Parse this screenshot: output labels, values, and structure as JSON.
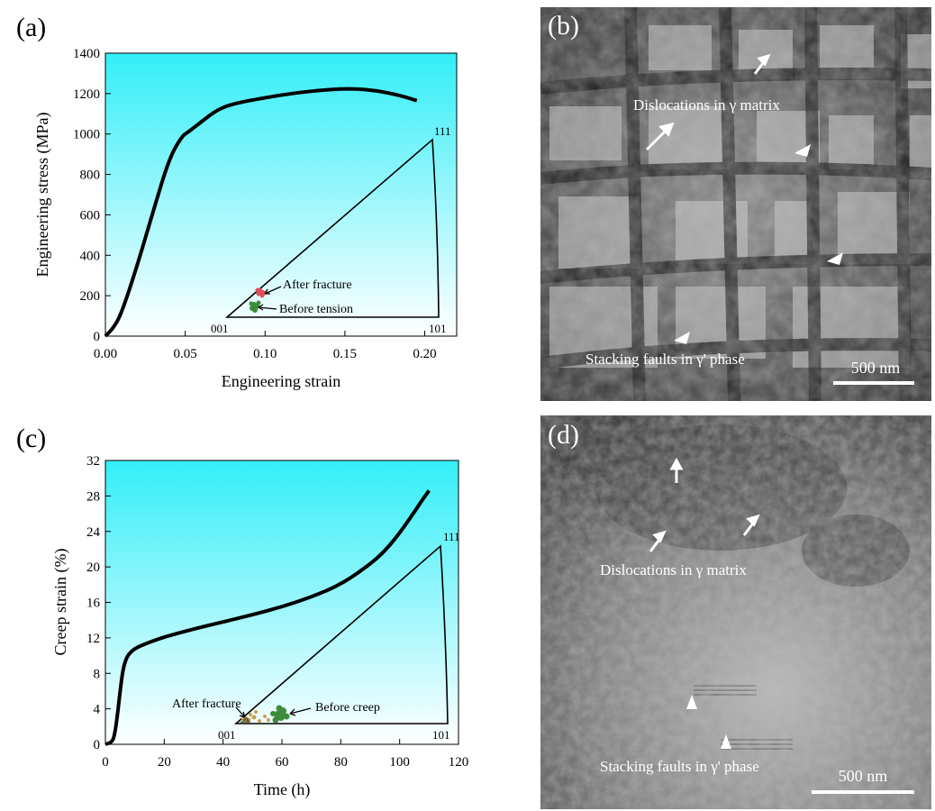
{
  "panels": {
    "a": {
      "label": "(a)",
      "chart_data": {
        "type": "line",
        "xlabel": "Engineering strain",
        "ylabel": "Engineering stress (MPa)",
        "xlim": [
          0,
          0.22
        ],
        "ylim": [
          0,
          1400
        ],
        "x_ticks": [
          0.0,
          0.05,
          0.1,
          0.15,
          0.2
        ],
        "x_tick_labels": [
          "0.00",
          "0.05",
          "0.10",
          "0.15",
          "0.20"
        ],
        "y_ticks": [
          0,
          200,
          400,
          600,
          800,
          1000,
          1200,
          1400
        ],
        "y_tick_labels": [
          "0",
          "200",
          "400",
          "600",
          "800",
          "1000",
          "1200",
          "1400"
        ],
        "series": [
          {
            "x": [
              0.0,
              0.005,
              0.01,
              0.02,
              0.03,
              0.04,
              0.048,
              0.052,
              0.06,
              0.07,
              0.08,
              0.1,
              0.12,
              0.14,
              0.155,
              0.17,
              0.185,
              0.195
            ],
            "y": [
              0,
              40,
              110,
              350,
              620,
              880,
              990,
              1010,
              1060,
              1120,
              1150,
              1180,
              1205,
              1220,
              1225,
              1215,
              1190,
              1165
            ]
          }
        ],
        "inverse_pole_figure": {
          "corner_labels": [
            "001",
            "101",
            "111"
          ],
          "annotations": [
            "After fracture",
            "Before tension"
          ]
        }
      }
    },
    "b": {
      "label": "(b)",
      "annotations": [
        "Dislocations in γ matrix",
        "Stacking faults in γ' phase"
      ],
      "scale_bar": "500 nm"
    },
    "c": {
      "label": "(c)",
      "chart_data": {
        "type": "line",
        "xlabel": "Time (h)",
        "ylabel": "Creep strain (%)",
        "xlim": [
          0,
          120
        ],
        "ylim": [
          0,
          32
        ],
        "x_ticks": [
          0,
          20,
          40,
          60,
          80,
          100,
          120
        ],
        "x_tick_labels": [
          "0",
          "20",
          "40",
          "60",
          "80",
          "100",
          "120"
        ],
        "y_ticks": [
          0,
          4,
          8,
          12,
          16,
          20,
          24,
          28,
          32
        ],
        "y_tick_labels": [
          "0",
          "4",
          "8",
          "12",
          "16",
          "20",
          "24",
          "28",
          "32"
        ],
        "series": [
          {
            "x": [
              0,
              2,
              3,
              4,
              5,
              6,
              7,
              8,
              10,
              14,
              20,
              30,
              40,
              50,
              60,
              70,
              80,
              90,
              95,
              100,
              105,
              108,
              110
            ],
            "y": [
              0,
              0.2,
              0.8,
              3,
              6,
              8.5,
              9.6,
              10.2,
              10.8,
              11.4,
              12.1,
              13,
              13.8,
              14.6,
              15.5,
              16.6,
              18,
              20.3,
              21.8,
              23.8,
              26.2,
              27.7,
              28.6
            ]
          }
        ],
        "inverse_pole_figure": {
          "corner_labels": [
            "001",
            "101",
            "111"
          ],
          "annotations": [
            "After fracture",
            "Before creep"
          ]
        }
      }
    },
    "d": {
      "label": "(d)",
      "annotations": [
        "Dislocations in γ matrix",
        "Stacking faults in γ' phase"
      ],
      "scale_bar": "500 nm"
    }
  },
  "colors": {
    "plot_bg_top": "#33eef8",
    "plot_bg_bottom": "#ffffff",
    "curve": "#000000",
    "red_dots": "#e0505a",
    "green_dots": "#3c8c3c",
    "tan_dots": "#c8a050",
    "tem_b_base": "#4a4a4a",
    "tem_d_base": "#6a6a6a"
  }
}
